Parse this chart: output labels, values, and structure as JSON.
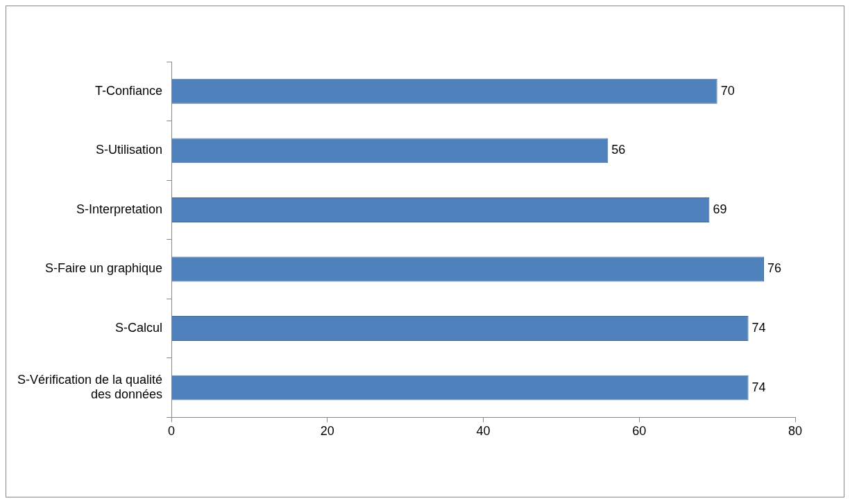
{
  "chart_data": {
    "type": "bar",
    "orientation": "horizontal",
    "categories": [
      "T-Confiance",
      "S-Utilisation",
      "S-Interpretation",
      "S-Faire un graphique",
      "S-Calcul",
      "S-Vérification de la qualité des données"
    ],
    "values": [
      70,
      56,
      69,
      76,
      74,
      74
    ],
    "color": "#4f81bd",
    "xlim": [
      0,
      80
    ],
    "xticks": [
      0,
      20,
      40,
      60,
      80
    ],
    "grid": false,
    "legend": false,
    "data_labels": true
  }
}
